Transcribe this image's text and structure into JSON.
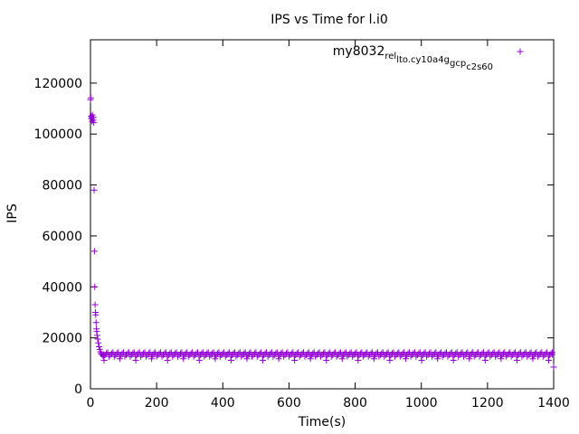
{
  "chart_data": {
    "type": "scatter",
    "title": "IPS vs Time for l.i0",
    "xlabel": "Time(s)",
    "ylabel": "IPS",
    "xlim": [
      0,
      1400
    ],
    "ylim": [
      0,
      137000
    ],
    "xticks": [
      0,
      200,
      400,
      600,
      800,
      1000,
      1200,
      1400
    ],
    "yticks": [
      0,
      20000,
      40000,
      60000,
      80000,
      100000,
      120000
    ],
    "grid": false,
    "legend_position": "top-right",
    "series": [
      {
        "name": "my8032_rel_lto.cy10a4g_gcp_c2s60",
        "legend_parts": {
          "p1": "my8032",
          "s1": "rel",
          "p2": "",
          "s2": "lto.cy10a4g",
          "p3": "",
          "s3": "gcp",
          "p4": "",
          "s4": "c2s60"
        },
        "color": "#9400d3",
        "marker": "+",
        "points": [
          [
            0,
            113500
          ],
          [
            1,
            114200
          ],
          [
            2,
            107000
          ],
          [
            3,
            106000
          ],
          [
            4,
            106500
          ],
          [
            5,
            105000
          ],
          [
            6,
            107500
          ],
          [
            7,
            106500
          ],
          [
            8,
            105500
          ],
          [
            9,
            106500
          ],
          [
            10,
            104500
          ],
          [
            11,
            78000
          ],
          [
            12,
            54000
          ],
          [
            13,
            40000
          ],
          [
            14,
            33000
          ],
          [
            15,
            30000
          ],
          [
            16,
            29000
          ],
          [
            17,
            26000
          ],
          [
            18,
            23500
          ],
          [
            19,
            22500
          ],
          [
            20,
            21000
          ],
          [
            22,
            19500
          ],
          [
            24,
            18000
          ],
          [
            26,
            16500
          ],
          [
            28,
            15500
          ],
          [
            30,
            14500
          ],
          [
            32,
            13800
          ],
          [
            35,
            13500
          ],
          [
            38,
            13000
          ],
          [
            40,
            13400
          ],
          [
            1396,
            13500
          ],
          [
            1400,
            8500
          ]
        ],
        "steady_state": {
          "x_start": 40,
          "x_end": 1398,
          "step": 4,
          "band_values": [
            12700,
            13300,
            13900,
            14300
          ],
          "low_outlier_every": 12,
          "low_outlier_values": [
            11200,
            11800
          ]
        }
      }
    ]
  }
}
